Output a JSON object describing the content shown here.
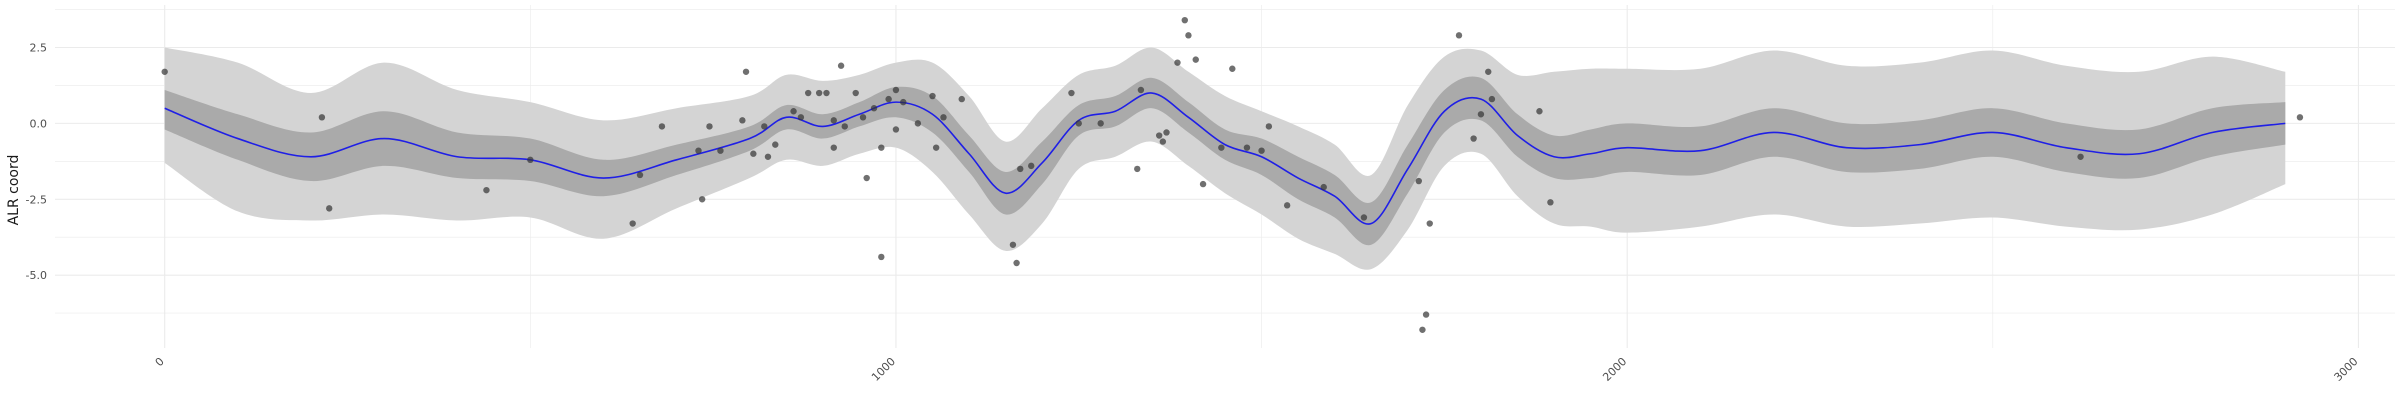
{
  "chart_data": {
    "type": "line",
    "title": "",
    "xlabel": "",
    "ylabel": "ALR coord",
    "xlim": [
      -150,
      3050
    ],
    "ylim": [
      -7.4,
      3.9
    ],
    "x_ticks": [
      0,
      1000,
      2000,
      3000
    ],
    "x_tick_labels": [
      "0",
      "1000",
      "2000",
      "3000"
    ],
    "y_ticks": [
      2.5,
      0.0,
      -2.5,
      -5.0
    ],
    "y_tick_labels": [
      "2.5",
      "0.0",
      "-2.5",
      "-5.0"
    ],
    "grid": true,
    "legend": "none",
    "colors": {
      "mean_line": "#1f1fe6",
      "inner_band": "#aaaaaa",
      "outer_band": "#d4d4d4",
      "points": "#333333",
      "grid": "#ebebeb"
    },
    "series": [
      {
        "kind": "mean",
        "x": [
          0,
          100,
          200,
          300,
          400,
          500,
          600,
          700,
          800,
          850,
          900,
          950,
          1000,
          1050,
          1100,
          1150,
          1200,
          1250,
          1300,
          1350,
          1400,
          1450,
          1500,
          1550,
          1600,
          1650,
          1700,
          1750,
          1800,
          1850,
          1900,
          1950,
          2000,
          2100,
          2200,
          2300,
          2400,
          2500,
          2600,
          2700,
          2800,
          2900
        ],
        "y": [
          0.5,
          -0.5,
          -1.1,
          -0.5,
          -1.1,
          -1.2,
          -1.8,
          -1.2,
          -0.5,
          0.2,
          -0.1,
          0.3,
          0.7,
          0.3,
          -1.0,
          -2.3,
          -1.3,
          0.1,
          0.4,
          1.0,
          0.2,
          -0.7,
          -1.1,
          -1.8,
          -2.4,
          -3.3,
          -1.5,
          0.4,
          0.8,
          -0.4,
          -1.1,
          -1.0,
          -0.8,
          -0.9,
          -0.3,
          -0.8,
          -0.7,
          -0.3,
          -0.8,
          -1.0,
          -0.3,
          0.0
        ]
      },
      {
        "kind": "inner_band",
        "x": [
          0,
          100,
          200,
          300,
          400,
          500,
          600,
          700,
          800,
          850,
          900,
          950,
          1000,
          1050,
          1100,
          1150,
          1200,
          1250,
          1300,
          1350,
          1400,
          1450,
          1500,
          1550,
          1600,
          1650,
          1700,
          1750,
          1800,
          1850,
          1900,
          1950,
          2000,
          2100,
          2200,
          2300,
          2400,
          2500,
          2600,
          2700,
          2800,
          2900
        ],
        "lower": [
          -0.2,
          -1.2,
          -1.9,
          -1.4,
          -1.8,
          -1.9,
          -2.4,
          -1.7,
          -0.9,
          -0.2,
          -0.5,
          -0.1,
          0.2,
          -0.3,
          -1.6,
          -3.0,
          -2.0,
          -0.4,
          -0.1,
          0.5,
          -0.3,
          -1.2,
          -1.7,
          -2.5,
          -3.1,
          -4.0,
          -2.3,
          -0.3,
          0.1,
          -1.1,
          -1.8,
          -1.8,
          -1.6,
          -1.7,
          -1.1,
          -1.6,
          -1.5,
          -1.1,
          -1.6,
          -1.8,
          -1.1,
          -0.7
        ],
        "upper": [
          1.1,
          0.3,
          -0.3,
          0.4,
          -0.3,
          -0.5,
          -1.2,
          -0.7,
          -0.1,
          0.6,
          0.3,
          0.7,
          1.2,
          0.9,
          -0.4,
          -1.6,
          -0.6,
          0.6,
          0.9,
          1.5,
          0.7,
          -0.2,
          -0.5,
          -1.1,
          -1.7,
          -2.6,
          -0.7,
          1.1,
          1.5,
          0.3,
          -0.4,
          -0.2,
          0.0,
          -0.1,
          0.5,
          0.0,
          0.1,
          0.5,
          0.0,
          -0.2,
          0.5,
          0.7
        ]
      },
      {
        "kind": "outer_band",
        "x": [
          0,
          100,
          200,
          300,
          400,
          500,
          600,
          700,
          800,
          850,
          900,
          950,
          1000,
          1050,
          1100,
          1150,
          1200,
          1250,
          1300,
          1350,
          1400,
          1450,
          1500,
          1550,
          1600,
          1650,
          1700,
          1750,
          1800,
          1850,
          1900,
          1950,
          2000,
          2100,
          2200,
          2300,
          2400,
          2500,
          2600,
          2700,
          2800,
          2900
        ],
        "lower": [
          -1.3,
          -2.9,
          -3.2,
          -3.0,
          -3.2,
          -3.1,
          -3.8,
          -2.8,
          -1.8,
          -1.2,
          -1.4,
          -1.0,
          -0.8,
          -1.6,
          -3.0,
          -4.2,
          -3.3,
          -1.5,
          -1.1,
          -0.6,
          -1.4,
          -2.3,
          -3.0,
          -3.8,
          -4.3,
          -4.8,
          -3.5,
          -1.4,
          -1.0,
          -2.4,
          -3.3,
          -3.4,
          -3.6,
          -3.4,
          -3.0,
          -3.4,
          -3.3,
          -3.1,
          -3.4,
          -3.5,
          -3.0,
          -2.0
        ],
        "upper": [
          2.5,
          2.0,
          1.0,
          2.0,
          1.1,
          0.7,
          0.1,
          0.5,
          0.9,
          1.6,
          1.4,
          1.6,
          2.0,
          2.0,
          0.9,
          -0.6,
          0.5,
          1.6,
          1.9,
          2.5,
          1.7,
          0.9,
          0.4,
          -0.1,
          -0.7,
          -1.7,
          0.6,
          2.2,
          2.4,
          1.6,
          1.7,
          1.8,
          1.8,
          1.8,
          2.4,
          1.9,
          2.0,
          2.4,
          1.9,
          1.7,
          2.2,
          1.7
        ]
      },
      {
        "kind": "observations",
        "points": [
          [
            0,
            1.7
          ],
          [
            215,
            0.2
          ],
          [
            225,
            -2.8
          ],
          [
            440,
            -2.2
          ],
          [
            500,
            -1.2
          ],
          [
            640,
            -3.3
          ],
          [
            650,
            -1.7
          ],
          [
            680,
            -0.1
          ],
          [
            730,
            -0.9
          ],
          [
            735,
            -2.5
          ],
          [
            745,
            -0.1
          ],
          [
            760,
            -0.9
          ],
          [
            790,
            0.1
          ],
          [
            795,
            1.7
          ],
          [
            805,
            -1.0
          ],
          [
            820,
            -0.1
          ],
          [
            825,
            -1.1
          ],
          [
            835,
            -0.7
          ],
          [
            860,
            0.4
          ],
          [
            870,
            0.2
          ],
          [
            880,
            1.0
          ],
          [
            895,
            1.0
          ],
          [
            905,
            1.0
          ],
          [
            915,
            0.1
          ],
          [
            915,
            -0.8
          ],
          [
            925,
            1.9
          ],
          [
            930,
            -0.1
          ],
          [
            945,
            1.0
          ],
          [
            955,
            0.2
          ],
          [
            960,
            -1.8
          ],
          [
            970,
            0.5
          ],
          [
            980,
            -0.8
          ],
          [
            980,
            -4.4
          ],
          [
            990,
            0.8
          ],
          [
            1000,
            1.1
          ],
          [
            1000,
            -0.2
          ],
          [
            1010,
            0.7
          ],
          [
            1030,
            0.0
          ],
          [
            1050,
            0.9
          ],
          [
            1055,
            -0.8
          ],
          [
            1065,
            0.2
          ],
          [
            1090,
            0.8
          ],
          [
            1160,
            -4.0
          ],
          [
            1165,
            -4.6
          ],
          [
            1170,
            -1.5
          ],
          [
            1185,
            -1.4
          ],
          [
            1240,
            1.0
          ],
          [
            1250,
            0.0
          ],
          [
            1280,
            0.0
          ],
          [
            1330,
            -1.5
          ],
          [
            1335,
            1.1
          ],
          [
            1360,
            -0.4
          ],
          [
            1365,
            -0.6
          ],
          [
            1370,
            -0.3
          ],
          [
            1385,
            2.0
          ],
          [
            1395,
            3.4
          ],
          [
            1400,
            2.9
          ],
          [
            1410,
            2.1
          ],
          [
            1420,
            -2.0
          ],
          [
            1445,
            -0.8
          ],
          [
            1460,
            1.8
          ],
          [
            1480,
            -0.8
          ],
          [
            1500,
            -0.9
          ],
          [
            1510,
            -0.1
          ],
          [
            1535,
            -2.7
          ],
          [
            1585,
            -2.1
          ],
          [
            1640,
            -3.1
          ],
          [
            1715,
            -1.9
          ],
          [
            1720,
            -6.8
          ],
          [
            1725,
            -6.3
          ],
          [
            1730,
            -3.3
          ],
          [
            1770,
            2.9
          ],
          [
            1790,
            -0.5
          ],
          [
            1800,
            0.3
          ],
          [
            1810,
            1.7
          ],
          [
            1815,
            0.8
          ],
          [
            1880,
            0.4
          ],
          [
            1895,
            -2.6
          ],
          [
            2620,
            -1.1
          ],
          [
            2920,
            0.2
          ]
        ]
      }
    ]
  }
}
